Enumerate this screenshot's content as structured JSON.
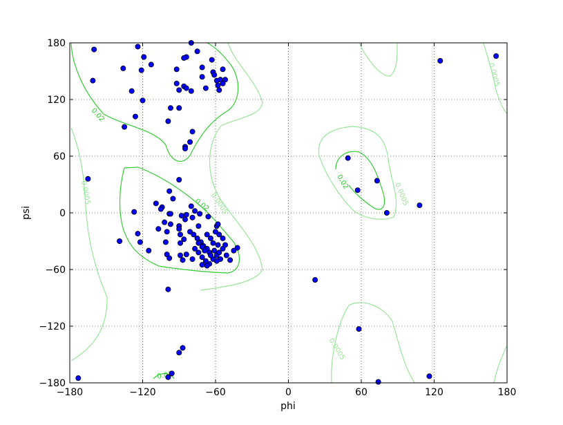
{
  "chart_data": {
    "type": "scatter",
    "xlabel": "phi",
    "ylabel": "psi",
    "xlim": [
      -180,
      180
    ],
    "ylim": [
      -180,
      180
    ],
    "xticks": [
      {
        "value": -180,
        "label": "−180"
      },
      {
        "value": -120,
        "label": "−120"
      },
      {
        "value": -60,
        "label": "−60"
      },
      0,
      60,
      120,
      180
    ],
    "yticks": [
      {
        "value": -180,
        "label": "−180"
      },
      {
        "value": -120,
        "label": "−120"
      },
      {
        "value": -60,
        "label": "−60"
      },
      0,
      60,
      120,
      180
    ],
    "grid": true,
    "contour_levels": [
      0.02,
      0.0005
    ],
    "contour_colors": [
      "#33cc33",
      "#99e699"
    ],
    "color": "#0000ff",
    "x": [
      -160,
      -161,
      -124,
      -119,
      -113,
      -136,
      -121,
      -129,
      -120,
      -126,
      -135,
      -80,
      -84,
      -86,
      -75,
      -63,
      -71,
      -92,
      -62,
      -61,
      -54,
      -71,
      -59,
      -56,
      -52,
      -92,
      -54,
      -58,
      -86,
      -84,
      -90,
      -68,
      -80,
      -57,
      -97,
      -90,
      -79,
      -99,
      -81,
      -85,
      -85,
      125,
      171,
      -165,
      -90,
      -98,
      -95,
      -109,
      -104,
      -105,
      -127,
      -98,
      -97,
      -88,
      -84,
      -80,
      -77,
      -73,
      -66,
      -79,
      -85,
      -102,
      -97,
      -107,
      -124,
      -90,
      -90,
      -74,
      -59,
      -58,
      -100,
      -89,
      -86,
      -122,
      -139,
      -101,
      -115,
      -89,
      -81,
      -78,
      -75,
      -72,
      -70,
      -67,
      -77,
      -74,
      -71,
      -68,
      -65,
      -62,
      -59,
      -57,
      -54,
      -52,
      -54,
      -57,
      -60,
      -64,
      -67,
      -62,
      -65,
      -61,
      -58,
      -56,
      -51,
      -48,
      -45,
      -42,
      -71,
      -67,
      -79,
      -84,
      -100,
      -98,
      -89,
      -87,
      -69,
      -71,
      -74,
      -64,
      -59,
      -99,
      49,
      57,
      73,
      81,
      108,
      22,
      58,
      74,
      116,
      -173,
      -87,
      -90,
      -96,
      -99
    ],
    "values": [
      173,
      140,
      176,
      165,
      157,
      153,
      151,
      129,
      119,
      102,
      91,
      180,
      165,
      164,
      171,
      162,
      154,
      152,
      149,
      146,
      152,
      144,
      140,
      141,
      141,
      137,
      137,
      135,
      134,
      132,
      130,
      132,
      129,
      130,
      111,
      111,
      86,
      97,
      75,
      70,
      68,
      161,
      166,
      36,
      35,
      23,
      15,
      10,
      6,
      4,
      1,
      -1,
      -1,
      -3,
      -2,
      7,
      2,
      -1,
      -4,
      -5,
      -7,
      -10,
      -12,
      -17,
      -22,
      -14,
      -17,
      -14,
      -14,
      -12,
      -20,
      -23,
      -28,
      -31,
      -30,
      -31,
      -40,
      -32,
      -20,
      -23,
      -27,
      -31,
      -35,
      -38,
      -38,
      -42,
      -47,
      -51,
      -54,
      -49,
      -45,
      -42,
      -38,
      -34,
      -27,
      -23,
      -20,
      -27,
      -23,
      -32,
      -42,
      -40,
      -34,
      -49,
      -45,
      -50,
      -40,
      -37,
      -55,
      -56,
      -49,
      -44,
      -44,
      -48,
      -45,
      -50,
      -40,
      -36,
      -32,
      -45,
      -51,
      -81,
      58,
      24,
      34,
      0,
      8,
      -71,
      -123,
      -179,
      -173,
      -175,
      -143,
      -148,
      -170,
      -174
    ]
  }
}
